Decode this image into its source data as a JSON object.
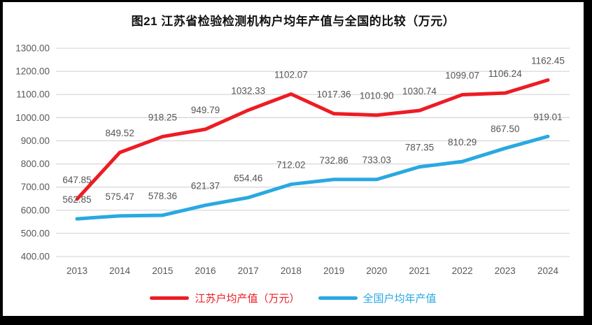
{
  "chart_data": {
    "type": "line",
    "title": "图21  江苏省检验检测机构户均年产值与全国的比较（万元）",
    "categories": [
      "2013",
      "2014",
      "2015",
      "2016",
      "2017",
      "2018",
      "2019",
      "2020",
      "2021",
      "2022",
      "2023",
      "2024"
    ],
    "series": [
      {
        "id": "jiangsu",
        "name": "江苏户均产值（万元）",
        "color": "#ED1C24",
        "values": [
          647.85,
          849.52,
          918.25,
          949.79,
          1032.33,
          1102.07,
          1017.36,
          1010.9,
          1030.74,
          1099.07,
          1106.24,
          1162.45
        ]
      },
      {
        "id": "national",
        "name": "全国户均年产值",
        "color": "#29A9E1",
        "values": [
          562.85,
          575.47,
          578.36,
          621.37,
          654.46,
          712.02,
          732.86,
          733.03,
          787.35,
          810.29,
          867.5,
          919.01
        ]
      }
    ],
    "ylim": [
      400,
      1300
    ],
    "y_ticks": [
      "1300.00",
      "1200.00",
      "1100.00",
      "1000.00",
      "900.00",
      "800.00",
      "700.00",
      "600.00",
      "500.00",
      "400.00"
    ],
    "xlabel": "",
    "ylabel": "",
    "grid": true,
    "legend_position": "bottom",
    "value_label_decimals": 2,
    "colors": {
      "grid": "#D9D9D9",
      "axis_text": "#595959",
      "label_text": "#555555",
      "title": "#111111",
      "frame": "#000000"
    }
  }
}
